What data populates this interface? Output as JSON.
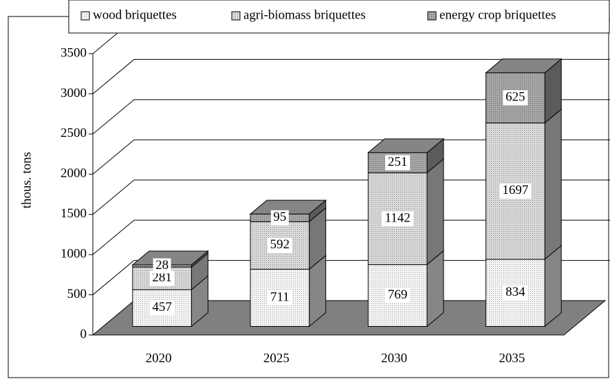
{
  "chart_data": {
    "type": "bar3d_stacked",
    "ylabel": "thous. tons",
    "categories": [
      "2020",
      "2025",
      "2030",
      "2035"
    ],
    "series": [
      {
        "name": "wood briquettes",
        "color": "#f4f4f4",
        "values": [
          457,
          711,
          769,
          834
        ]
      },
      {
        "name": "agri-biomass briquettes",
        "color": "#d9d9d9",
        "values": [
          281,
          592,
          1142,
          1697
        ]
      },
      {
        "name": "energy crop briquettes",
        "color": "#a6a6a6",
        "values": [
          28,
          95,
          251,
          625
        ]
      }
    ],
    "ylim": [
      0,
      3500
    ],
    "yticks": [
      0,
      500,
      1000,
      1500,
      2000,
      2500,
      3000,
      3500
    ],
    "grid": true,
    "legend": "top"
  }
}
